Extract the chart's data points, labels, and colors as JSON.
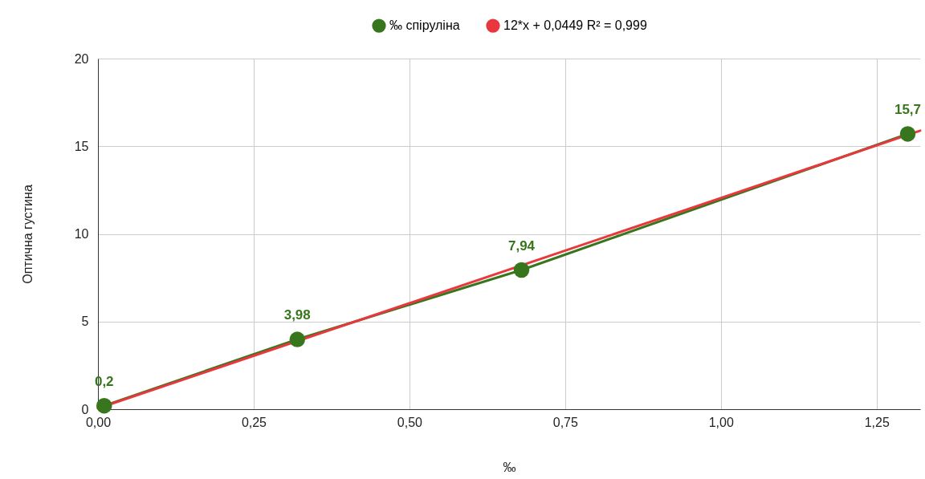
{
  "chart_data": {
    "type": "line",
    "xlabel": "‰",
    "ylabel": "Оптична густина",
    "x": [
      0.01,
      0.32,
      0.68,
      1.3
    ],
    "series": [
      {
        "name": "‰ спіруліна",
        "color": "#38761d",
        "values": [
          0.2,
          3.98,
          7.94,
          15.7
        ],
        "marker": "circle",
        "value_labels": [
          "0,2",
          "3,98",
          "7,94",
          "15,7"
        ]
      },
      {
        "name": "12*x + 0,0449 R² = 0,999",
        "color": "#e8383d",
        "type": "line",
        "x": [
          0,
          1.32
        ],
        "values": [
          0.0449,
          15.8849
        ],
        "marker": "none"
      }
    ],
    "xlim": [
      0,
      1.32
    ],
    "ylim": [
      0,
      20
    ],
    "xticks": [
      {
        "value": 0,
        "label": "0,00"
      },
      {
        "value": 0.25,
        "label": "0,25"
      },
      {
        "value": 0.5,
        "label": "0,50"
      },
      {
        "value": 0.75,
        "label": "0,75"
      },
      {
        "value": 1,
        "label": "1,00"
      },
      {
        "value": 1.25,
        "label": "1,25"
      }
    ],
    "yticks": [
      0,
      5,
      10,
      15,
      20
    ],
    "grid": true,
    "legend": "top"
  }
}
